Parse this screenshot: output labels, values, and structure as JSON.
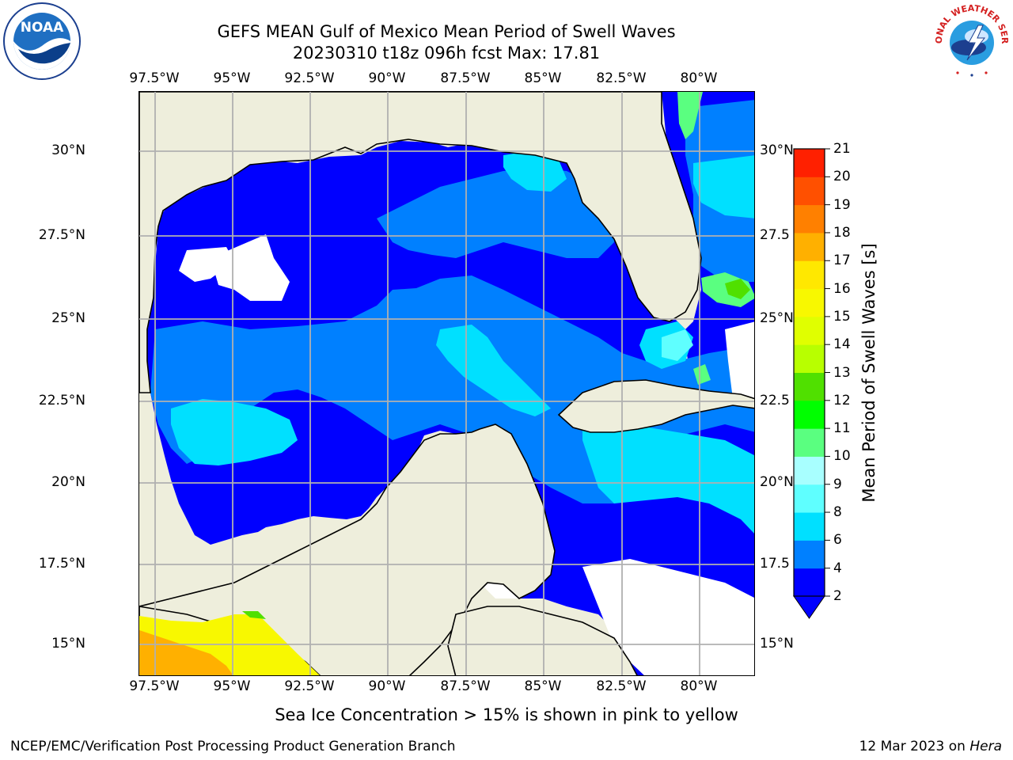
{
  "title": {
    "line1": "GEFS MEAN Gulf of Mexico Mean Period of Swell Waves",
    "line2": "20230310 t18z 096h fcst   Max: 17.81"
  },
  "map": {
    "lon_labels": [
      "97.5°W",
      "95°W",
      "92.5°W",
      "90°W",
      "87.5°W",
      "85°W",
      "82.5°W",
      "80°W"
    ],
    "lat_labels_left": [
      "30°N",
      "27.5°N",
      "25°N",
      "22.5°N",
      "20°N",
      "17.5°N",
      "15°N"
    ],
    "lat_labels_right": [
      "30°N",
      "27.5",
      "25°N",
      "22.5",
      "20°N",
      "17.5",
      "15°N"
    ],
    "land_color": "#eeeedc",
    "grid_color": "#b0b0b0"
  },
  "colorbar": {
    "label": "Mean Period of Swell Waves [s]",
    "ticks": [
      "2",
      "4",
      "6",
      "8",
      "9",
      "10",
      "11",
      "12",
      "13",
      "14",
      "15",
      "16",
      "17",
      "18",
      "19",
      "20",
      "21"
    ],
    "colors": [
      "#0000ff",
      "#0080ff",
      "#00e0ff",
      "#5fffff",
      "#a8ffff",
      "#5aff80",
      "#00ff00",
      "#50e000",
      "#b8ff00",
      "#e0ff00",
      "#f8f800",
      "#ffe800",
      "#ffb000",
      "#ff8000",
      "#ff5000",
      "#ff2000"
    ]
  },
  "footnote": "Sea Ice Concentration > 15% is shown in pink to yellow",
  "credit": "NCEP/EMC/Verification Post Processing Product Generation Branch",
  "date": {
    "text": "12 Mar 2023 on ",
    "machine": "Hera"
  },
  "logos": {
    "noaa": "NOAA",
    "nws_ring": "NATIONAL WEATHER SERVICE"
  }
}
